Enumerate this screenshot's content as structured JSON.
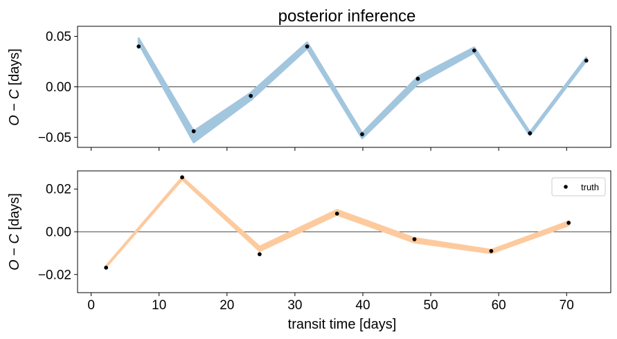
{
  "chart_data": [
    {
      "type": "line",
      "title": "posterior inference",
      "xlabel": "",
      "ylabel": "O − C [days]",
      "xlim": [
        -2,
        76.5
      ],
      "ylim": [
        -0.06,
        0.06
      ],
      "yticks": [
        -0.05,
        0.0,
        0.05
      ],
      "ytick_labels": [
        "−0.05",
        "0.00",
        "0.05"
      ],
      "xticks": [
        0,
        10,
        20,
        30,
        40,
        50,
        60,
        70
      ],
      "show_xtick_labels": false,
      "reference_line_y": 0,
      "band_color": "#a3c6df",
      "point_color": "#000000",
      "series": [
        {
          "kind": "posterior-band",
          "x": [
            7.0,
            15.1,
            23.5,
            31.8,
            39.9,
            48.1,
            56.4,
            64.6,
            72.9
          ],
          "y_low": [
            0.043,
            -0.055,
            -0.013,
            0.038,
            -0.051,
            0.003,
            0.034,
            -0.048,
            0.026
          ],
          "y_high": [
            0.048,
            -0.044,
            -0.006,
            0.044,
            -0.046,
            0.01,
            0.039,
            -0.045,
            0.029
          ]
        },
        {
          "kind": "points",
          "x": [
            7.0,
            15.1,
            23.5,
            31.8,
            39.9,
            48.1,
            56.4,
            64.6,
            72.9
          ],
          "y": [
            0.04,
            -0.044,
            -0.009,
            0.04,
            -0.047,
            0.008,
            0.036,
            -0.046,
            0.026
          ]
        }
      ]
    },
    {
      "type": "line",
      "title": "",
      "xlabel": "transit time [days]",
      "ylabel": "O − C [days]",
      "xlim": [
        -2,
        76.5
      ],
      "ylim": [
        -0.0285,
        0.0285
      ],
      "yticks": [
        -0.02,
        0.0,
        0.02
      ],
      "ytick_labels": [
        "−0.02",
        "0.00",
        "0.02"
      ],
      "xticks": [
        0,
        10,
        20,
        30,
        40,
        50,
        60,
        70
      ],
      "xtick_labels": [
        "0",
        "10",
        "20",
        "30",
        "40",
        "50",
        "60",
        "70"
      ],
      "reference_line_y": 0,
      "band_color": "#fdca9e",
      "point_color": "#000000",
      "legend": {
        "placement": "top-right",
        "entries": [
          {
            "label": "truth",
            "marker": "point"
          }
        ]
      },
      "series": [
        {
          "kind": "posterior-band",
          "x": [
            2.2,
            13.4,
            24.8,
            36.2,
            47.6,
            58.9,
            70.3
          ],
          "y_low": [
            -0.0165,
            0.0245,
            -0.009,
            0.008,
            -0.005,
            -0.01,
            0.003
          ],
          "y_high": [
            -0.016,
            0.0255,
            -0.007,
            0.0102,
            -0.003,
            -0.0085,
            0.0048
          ]
        },
        {
          "name": "truth",
          "kind": "points",
          "x": [
            2.2,
            13.4,
            24.8,
            36.2,
            47.6,
            58.9,
            70.3
          ],
          "y": [
            -0.0168,
            0.0255,
            -0.0105,
            0.0085,
            -0.0035,
            -0.009,
            0.0042
          ]
        }
      ]
    }
  ]
}
